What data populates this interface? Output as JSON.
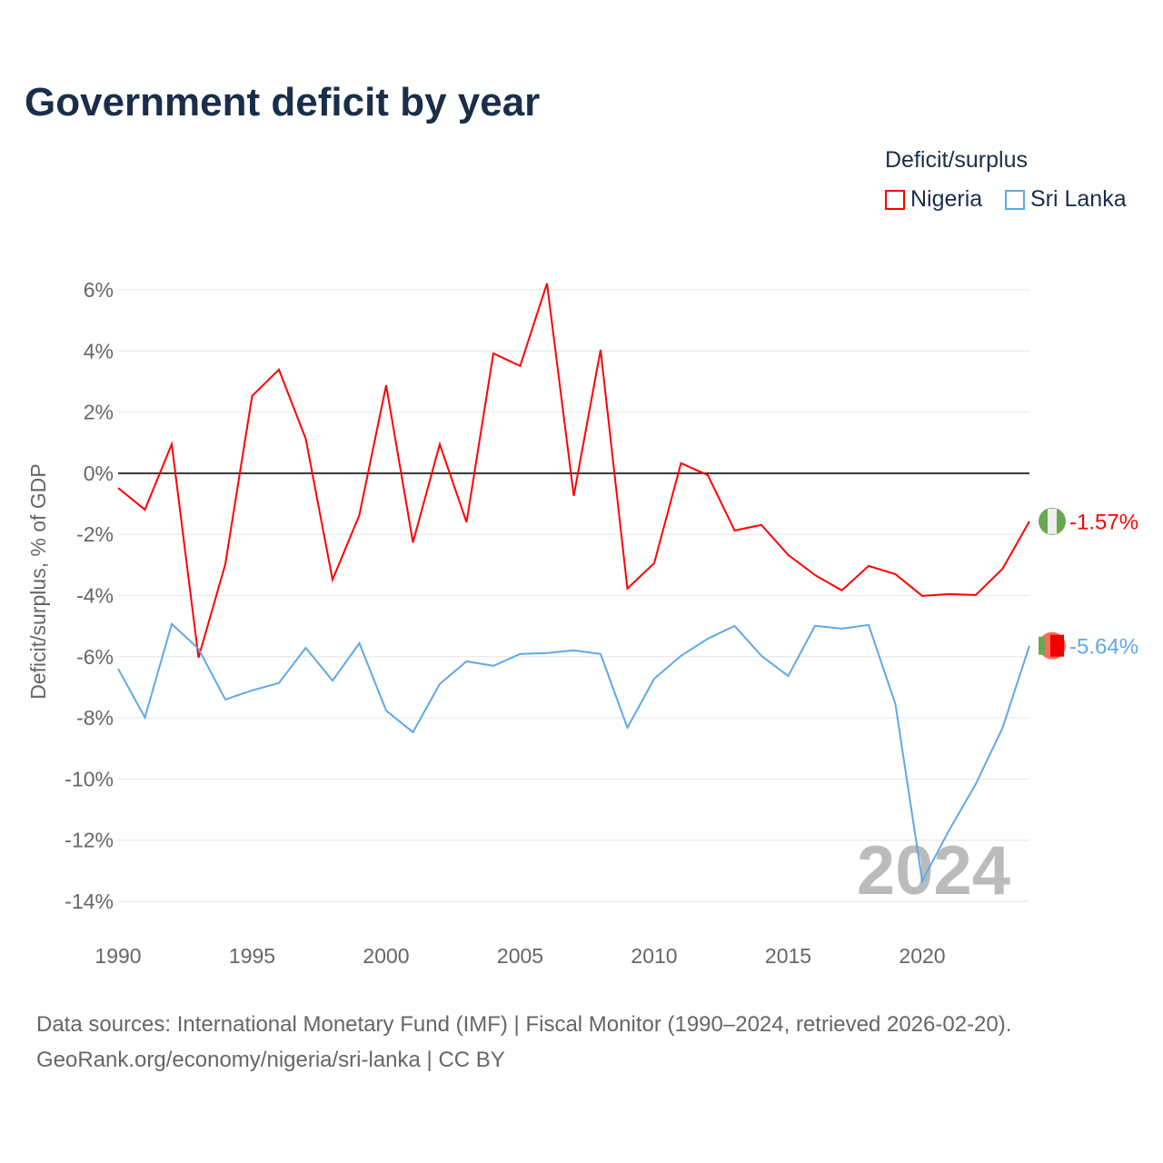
{
  "title": "Government deficit by year",
  "legend": {
    "title": "Deficit/surplus",
    "items": [
      "Nigeria",
      "Sri Lanka"
    ]
  },
  "source": {
    "line1": "Data sources: International Monetary Fund (IMF) | Fiscal Monitor (1990–2024, retrieved 2026-02-20).",
    "line2": "GeoRank.org/economy/nigeria/sri-lanka | CC BY"
  },
  "chart_data": {
    "type": "line",
    "title": "Government deficit by year",
    "xlabel": "",
    "ylabel": "Deficit/surplus, % of GDP",
    "xlim": [
      1990,
      2024
    ],
    "ylim": [
      -14,
      6
    ],
    "yticks": [
      6,
      4,
      2,
      0,
      -2,
      -4,
      -6,
      -8,
      -10,
      -12,
      -14
    ],
    "ytick_labels": [
      "6%",
      "4%",
      "2%",
      "0%",
      "-2%",
      "-4%",
      "-6%",
      "-8%",
      "-10%",
      "-12%",
      "-14%"
    ],
    "xticks": [
      1990,
      1995,
      2000,
      2005,
      2010,
      2015,
      2020
    ],
    "xtick_labels": [
      "1990",
      "1995",
      "2000",
      "2005",
      "2010",
      "2015",
      "2020"
    ],
    "year_watermark": "2024",
    "x": [
      1990,
      1991,
      1992,
      1993,
      1994,
      1995,
      1996,
      1997,
      1998,
      1999,
      2000,
      2001,
      2002,
      2003,
      2004,
      2005,
      2006,
      2007,
      2008,
      2009,
      2010,
      2011,
      2012,
      2013,
      2014,
      2015,
      2016,
      2017,
      2018,
      2019,
      2020,
      2021,
      2022,
      2023,
      2024
    ],
    "series": [
      {
        "name": "Nigeria",
        "color": "#ff0000",
        "end_label": "-1.57%",
        "values": [
          -0.48,
          -1.19,
          0.95,
          -6.03,
          -2.97,
          2.53,
          3.39,
          1.13,
          -3.48,
          -1.37,
          2.88,
          -2.26,
          0.95,
          -1.6,
          3.92,
          3.51,
          6.21,
          -0.74,
          4.04,
          -3.77,
          -2.94,
          0.33,
          -0.06,
          -1.87,
          -1.69,
          -2.67,
          -3.33,
          -3.83,
          -3.03,
          -3.3,
          -4.01,
          -3.95,
          -3.98,
          -3.12,
          -1.57
        ]
      },
      {
        "name": "Sri Lanka",
        "color": "#5fa8e8",
        "end_label": "-5.64%",
        "values": [
          -6.39,
          -7.99,
          -4.93,
          -5.74,
          -7.4,
          -7.1,
          -6.86,
          -5.71,
          -6.78,
          -5.56,
          -7.76,
          -8.47,
          -6.89,
          -6.15,
          -6.3,
          -5.91,
          -5.88,
          -5.79,
          -5.91,
          -8.32,
          -6.72,
          -5.97,
          -5.41,
          -4.99,
          -5.97,
          -6.63,
          -4.99,
          -5.08,
          -4.96,
          -7.55,
          -13.34,
          -11.68,
          -10.16,
          -8.32,
          -5.64
        ]
      }
    ]
  }
}
